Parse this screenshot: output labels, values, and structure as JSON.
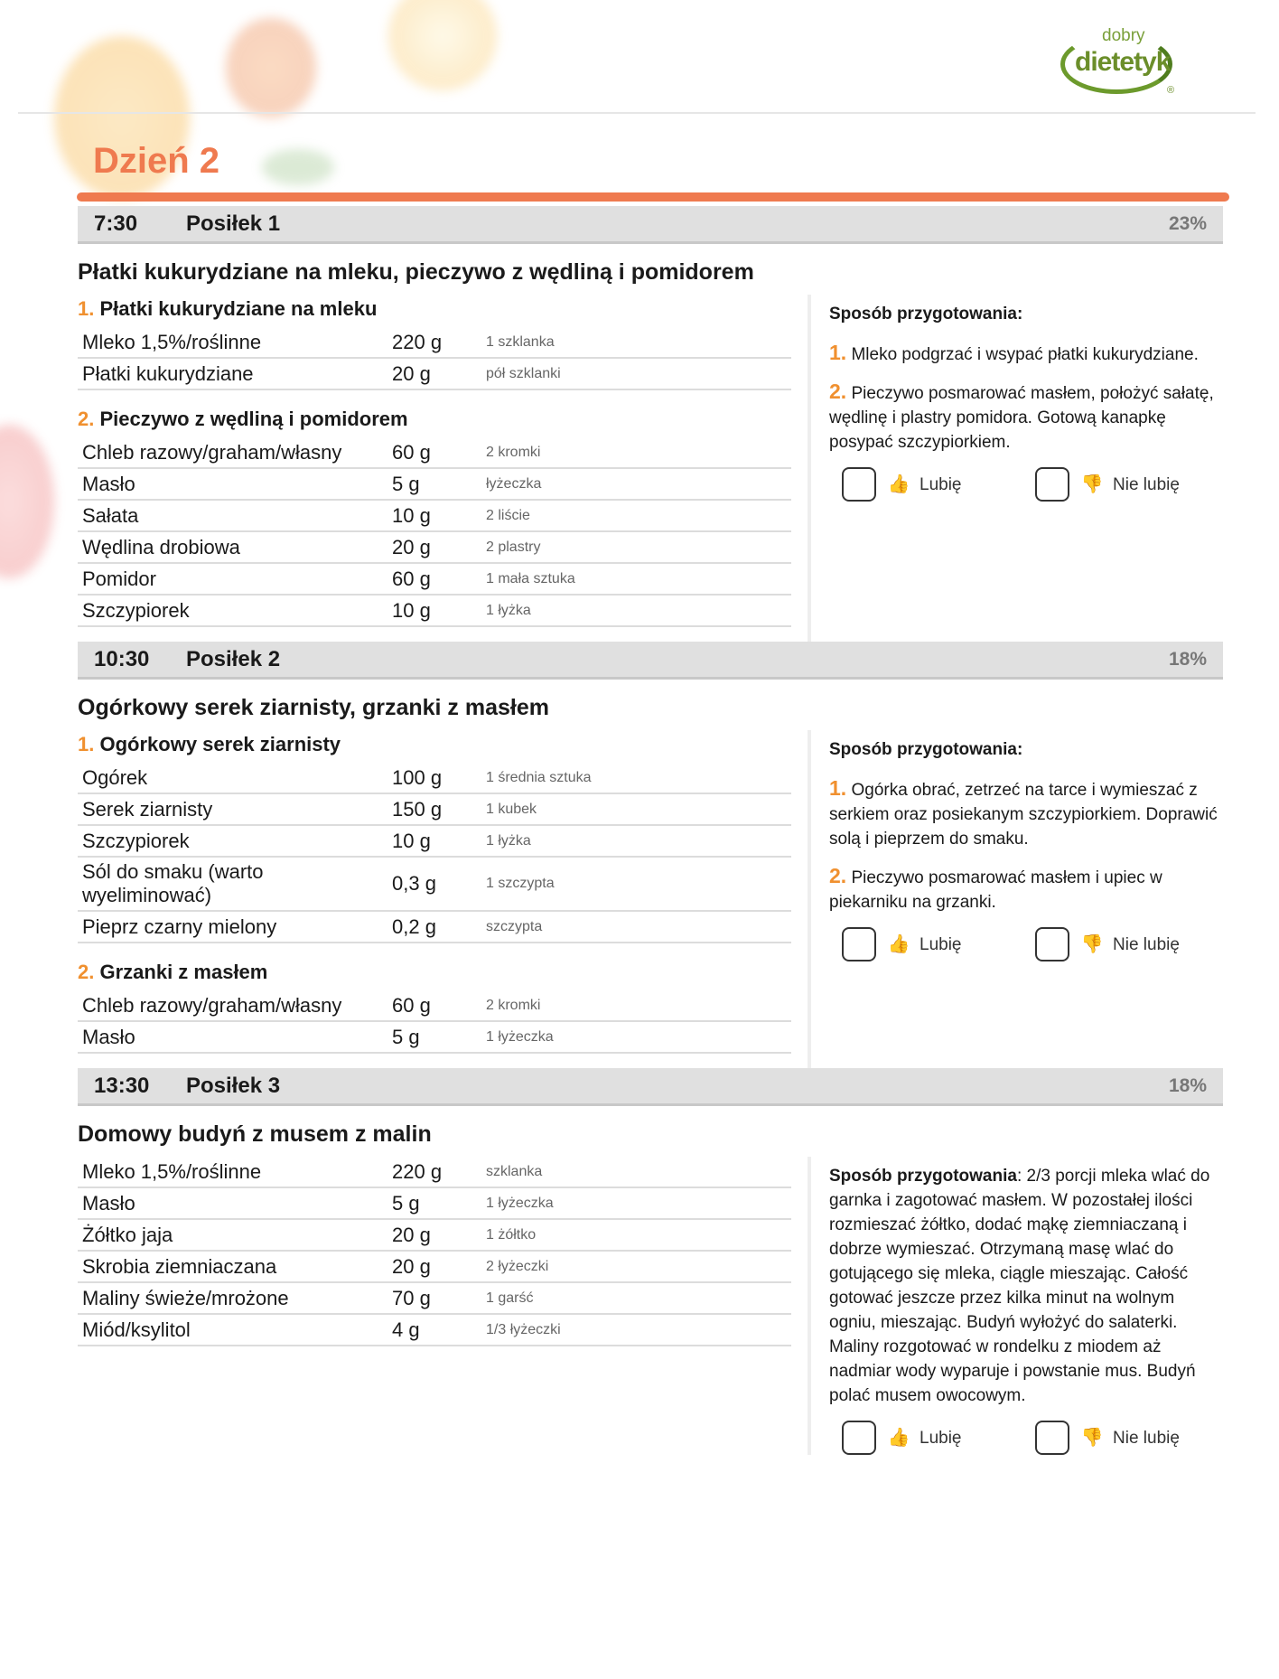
{
  "logo": {
    "top": "dobry",
    "main": "dietetyk",
    "mark": "®"
  },
  "day_title": "Dzień 2",
  "like_label": "Lubię",
  "dislike_label": "Nie lubię",
  "prep_label": "Sposób przygotowania",
  "colors": {
    "accent": "#ef7a4f",
    "number": "#f0902f",
    "header_bg": "#e0e0e0"
  },
  "meals": [
    {
      "time": "7:30",
      "name": "Posiłek 1",
      "percent": "23%",
      "title": "Płatki kukurydziane na mleku, pieczywo z wędliną i pomidorem",
      "sections": [
        {
          "num": "1.",
          "title": "Płatki kukurydziane na mleku",
          "rows": [
            {
              "name": "Mleko 1,5%/roślinne",
              "qty": "220 g",
              "unit": "1 szklanka"
            },
            {
              "name": "Płatki kukurydziane",
              "qty": "20 g",
              "unit": "pół szklanki"
            }
          ]
        },
        {
          "num": "2.",
          "title": "Pieczywo z wędliną i pomidorem",
          "rows": [
            {
              "name": "Chleb razowy/graham/własny",
              "qty": "60 g",
              "unit": "2 kromki"
            },
            {
              "name": "Masło",
              "qty": "5 g",
              "unit": "łyżeczka"
            },
            {
              "name": "Sałata",
              "qty": "10 g",
              "unit": "2 liście"
            },
            {
              "name": "Wędlina drobiowa",
              "qty": "20 g",
              "unit": "2 plastry"
            },
            {
              "name": "Pomidor",
              "qty": "60 g",
              "unit": "1 mała sztuka"
            },
            {
              "name": "Szczypiorek",
              "qty": "10 g",
              "unit": "1 łyżka"
            }
          ]
        }
      ],
      "steps": [
        {
          "num": "1.",
          "text": "Mleko podgrzać i wsypać płatki kukurydziane."
        },
        {
          "num": "2.",
          "text": "Pieczywo posmarować masłem, położyć sałatę, wędlinę i plastry pomidora. Gotową kanapkę posypać szczypiorkiem."
        }
      ]
    },
    {
      "time": "10:30",
      "name": "Posiłek 2",
      "percent": "18%",
      "title": "Ogórkowy serek ziarnisty, grzanki z masłem",
      "sections": [
        {
          "num": "1.",
          "title": "Ogórkowy serek ziarnisty",
          "rows": [
            {
              "name": "Ogórek",
              "qty": "100 g",
              "unit": "1 średnia sztuka"
            },
            {
              "name": "Serek ziarnisty",
              "qty": "150 g",
              "unit": "1 kubek"
            },
            {
              "name": "Szczypiorek",
              "qty": "10 g",
              "unit": "1 łyżka"
            },
            {
              "name": "Sól do smaku (warto wyeliminować)",
              "qty": "0,3 g",
              "unit": "1 szczypta"
            },
            {
              "name": "Pieprz czarny mielony",
              "qty": "0,2 g",
              "unit": "szczypta"
            }
          ]
        },
        {
          "num": "2.",
          "title": "Grzanki z masłem",
          "rows": [
            {
              "name": "Chleb razowy/graham/własny",
              "qty": "60 g",
              "unit": "2 kromki"
            },
            {
              "name": "Masło",
              "qty": "5 g",
              "unit": "1 łyżeczka"
            }
          ]
        }
      ],
      "steps": [
        {
          "num": "1.",
          "text": "Ogórka obrać, zetrzeć na tarce i wymieszać z serkiem oraz posiekanym szczypiorkiem. Doprawić solą i pieprzem do smaku."
        },
        {
          "num": "2.",
          "text": "Pieczywo posmarować masłem i upiec w piekarniku na grzanki."
        }
      ]
    },
    {
      "time": "13:30",
      "name": "Posiłek 3",
      "percent": "18%",
      "title": "Domowy budyń z musem z malin",
      "sections": [
        {
          "rows": [
            {
              "name": "Mleko 1,5%/roślinne",
              "qty": "220 g",
              "unit": "szklanka"
            },
            {
              "name": "Masło",
              "qty": "5 g",
              "unit": "1 łyżeczka"
            },
            {
              "name": "Żółtko jaja",
              "qty": "20 g",
              "unit": "1 żółtko"
            },
            {
              "name": "Skrobia ziemniaczana",
              "qty": "20 g",
              "unit": "2 łyżeczki"
            },
            {
              "name": "Maliny świeże/mrożone",
              "qty": "70 g",
              "unit": "1 garść"
            },
            {
              "name": "Miód/ksylitol",
              "qty": "4 g",
              "unit": "1/3 łyżeczki"
            }
          ]
        }
      ],
      "prep_text": "2/3 porcji mleka wlać do garnka i zagotować masłem. W pozostałej ilości rozmieszać żółtko, dodać mąkę ziemniaczaną i dobrze wymieszać. Otrzymaną masę wlać do gotującego się mleka, ciągle mieszając. Całość gotować jeszcze przez kilka minut na wolnym ogniu, mieszając. Budyń wyłożyć do salaterki. Maliny rozgotować w rondelku z miodem aż nadmiar wody wyparuje i powstanie mus. Budyń polać musem owocowym."
    }
  ]
}
